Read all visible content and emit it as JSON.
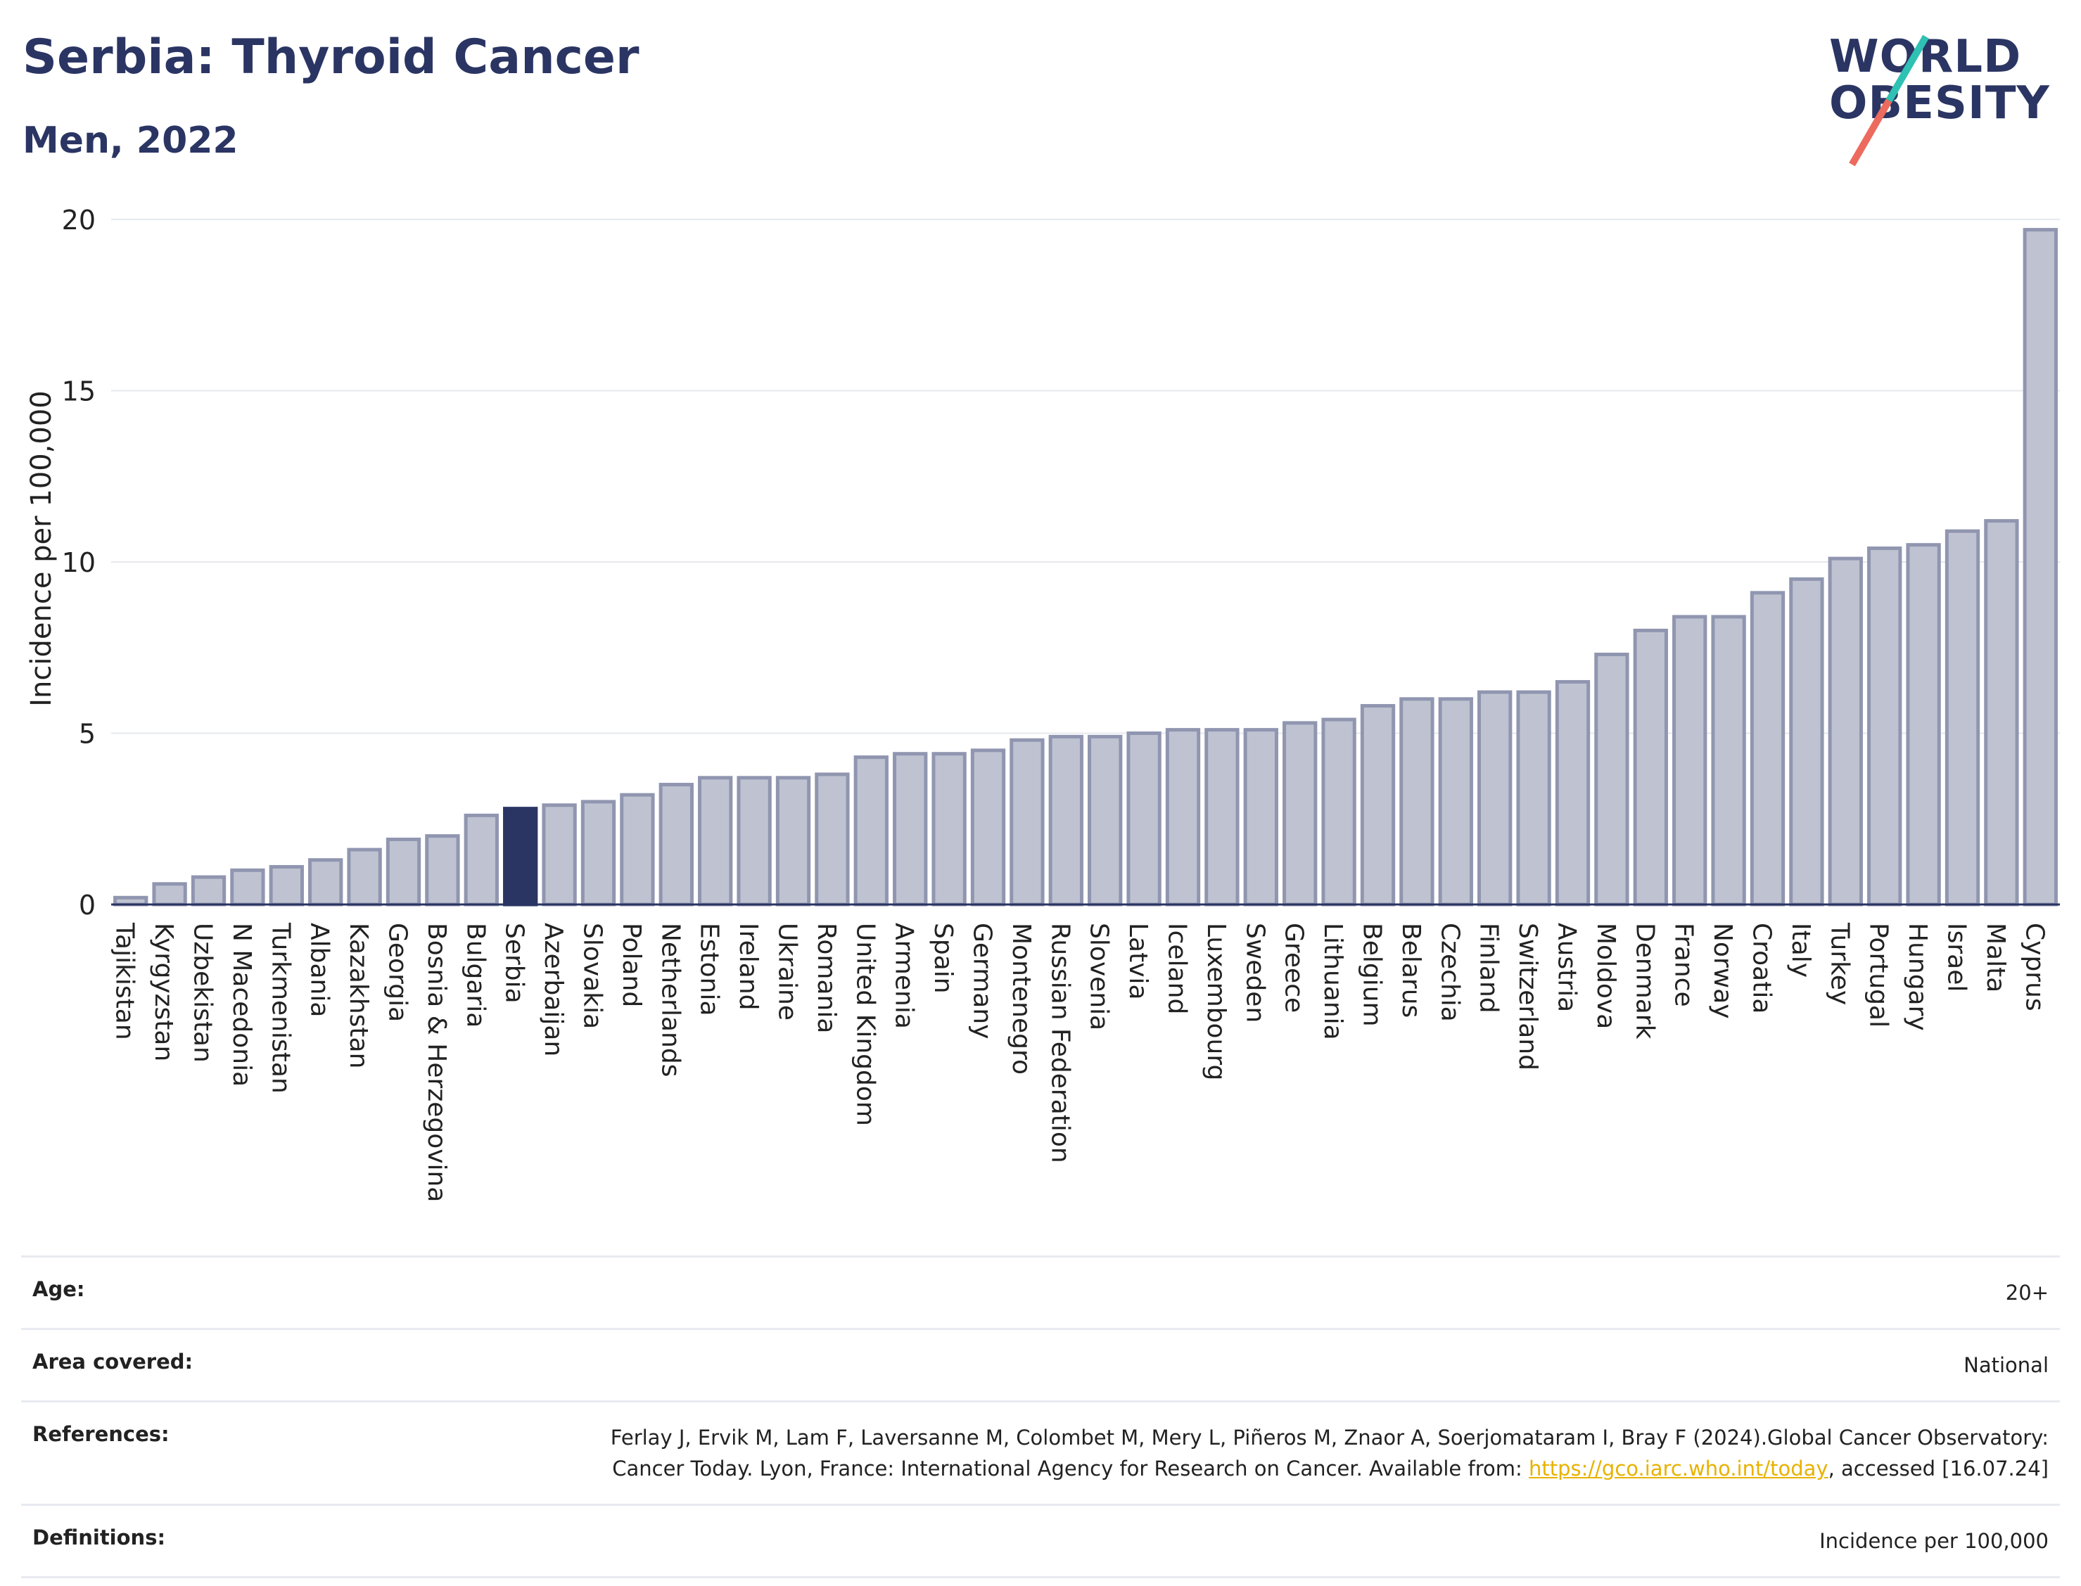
{
  "header": {
    "title": "Serbia: Thyroid Cancer",
    "subtitle": "Men, 2022"
  },
  "logo": {
    "line1": "WORLD",
    "line2": "OBESITY",
    "colors": {
      "navy": "#2b3563",
      "teal": "#2fc1b3",
      "coral": "#ec6b5e"
    }
  },
  "chart_data": {
    "type": "bar",
    "ylabel": "Incidence per 100,000",
    "ylim": [
      0,
      20
    ],
    "yticks": [
      0,
      5,
      10,
      15,
      20
    ],
    "grid": true,
    "highlight": "Serbia",
    "colors": {
      "bar": "#bfc3d1",
      "bar_edge": "#9096b0",
      "highlight": "#2b3563"
    },
    "categories": [
      "Tajikistan",
      "Kyrgyzstan",
      "Uzbekistan",
      "N Macedonia",
      "Turkmenistan",
      "Albania",
      "Kazakhstan",
      "Georgia",
      "Bosnia & Herzegovina",
      "Bulgaria",
      "Serbia",
      "Azerbaijan",
      "Slovakia",
      "Poland",
      "Netherlands",
      "Estonia",
      "Ireland",
      "Ukraine",
      "Romania",
      "United Kingdom",
      "Armenia",
      "Spain",
      "Germany",
      "Montenegro",
      "Russian Federation",
      "Slovenia",
      "Latvia",
      "Iceland",
      "Luxembourg",
      "Sweden",
      "Greece",
      "Lithuania",
      "Belgium",
      "Belarus",
      "Czechia",
      "Finland",
      "Switzerland",
      "Austria",
      "Moldova",
      "Denmark",
      "France",
      "Norway",
      "Croatia",
      "Italy",
      "Turkey",
      "Portugal",
      "Hungary",
      "Israel",
      "Malta",
      "Cyprus"
    ],
    "values": [
      0.2,
      0.6,
      0.8,
      1.0,
      1.1,
      1.3,
      1.6,
      1.9,
      2.0,
      2.6,
      2.8,
      2.9,
      3.0,
      3.2,
      3.5,
      3.7,
      3.7,
      3.7,
      3.8,
      4.3,
      4.4,
      4.4,
      4.5,
      4.8,
      4.9,
      4.9,
      5.0,
      5.1,
      5.1,
      5.1,
      5.3,
      5.4,
      5.8,
      6.0,
      6.0,
      6.2,
      6.2,
      6.5,
      7.3,
      8.0,
      8.4,
      8.4,
      9.1,
      9.5,
      10.1,
      10.4,
      10.5,
      10.9,
      11.2,
      19.7
    ]
  },
  "info": {
    "age_label": "Age:",
    "age_value": "20+",
    "area_label": "Area covered:",
    "area_value": "National",
    "references_label": "References:",
    "references_text_1": "Ferlay J, Ervik M, Lam F, Laversanne M, Colombet M, Mery L, Piñeros M, Znaor A, Soerjomataram I, Bray F (2024).Global Cancer Observatory: Cancer Today. Lyon, France: International Agency for Research on Cancer. Available from: ",
    "references_link": "https://gco.iarc.who.int/today",
    "references_text_2": ", accessed [16.07.24]",
    "definitions_label": "Definitions:",
    "definitions_value": "Incidence per 100,000"
  }
}
